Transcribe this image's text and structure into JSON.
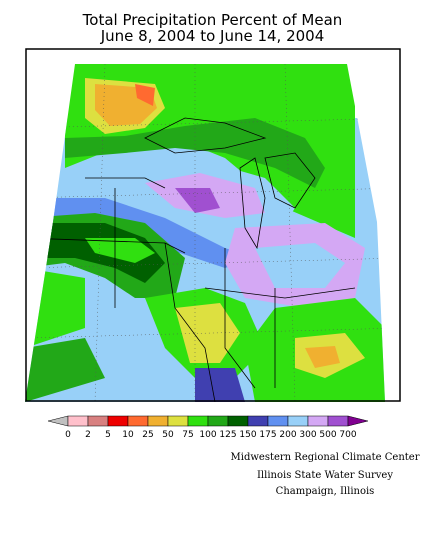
{
  "title": {
    "line1": "Total Precipitation Percent of Mean",
    "line2": "June 8, 2004 to June 14, 2004"
  },
  "legend": {
    "labels": [
      "0",
      "2",
      "5",
      "10",
      "25",
      "50",
      "75",
      "100",
      "125",
      "150",
      "175",
      "200",
      "300",
      "500",
      "700"
    ],
    "colors": [
      "#c0c0c0",
      "#ffc0cb",
      "#d88080",
      "#ee0000",
      "#ff6a30",
      "#f0b030",
      "#dde040",
      "#30e010",
      "#22a818",
      "#006000",
      "#4040b0",
      "#6090f0",
      "#98d0f8",
      "#d4a8f4",
      "#a050d0",
      "#800090"
    ]
  },
  "credits": {
    "line1": "Midwestern Regional Climate Center",
    "line2": "Illinois State Water Survey",
    "line3": "Champaign, Illinois"
  }
}
